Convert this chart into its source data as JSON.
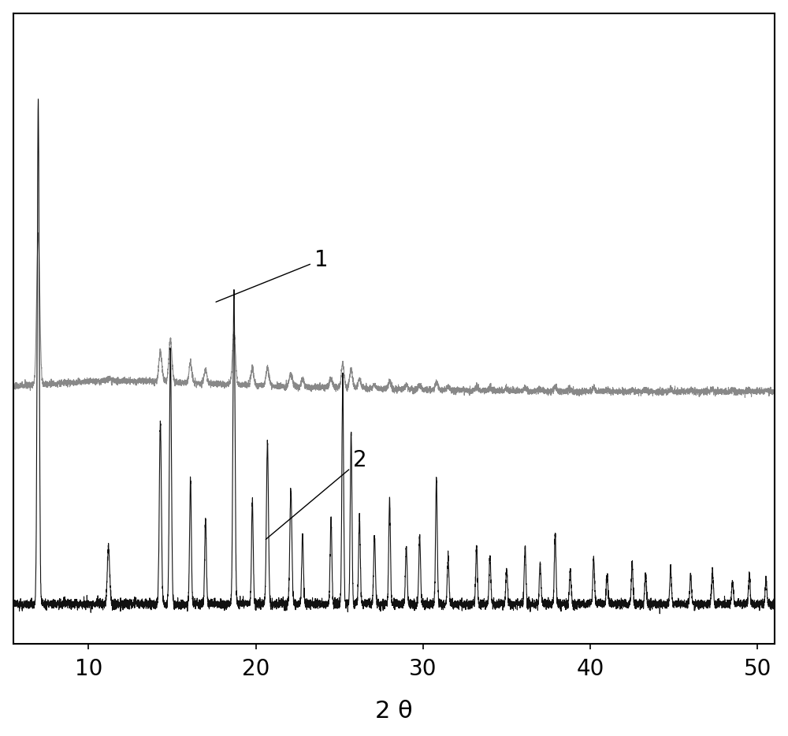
{
  "xlabel": "2 θ",
  "xlim": [
    5.5,
    51
  ],
  "xticks": [
    10,
    20,
    30,
    40,
    50
  ],
  "background_color": "#ffffff",
  "curve1_color": "#888888",
  "curve2_color": "#111111",
  "label1": "1",
  "label2": "2",
  "noise_seed1": 42,
  "noise_seed2": 99,
  "curve1_baseline": 0.42,
  "curve2_baseline": 0.05,
  "ylim": [
    -0.02,
    1.08
  ]
}
